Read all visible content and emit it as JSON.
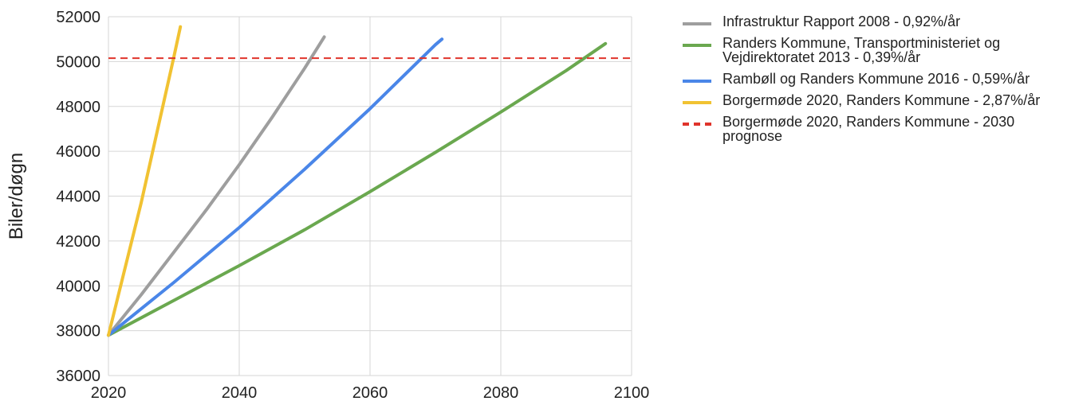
{
  "chart_data": {
    "type": "line",
    "title": "",
    "xlabel": "",
    "ylabel": "Biler/døgn",
    "xlim": [
      2020,
      2100
    ],
    "ylim": [
      36000,
      52000
    ],
    "x_ticks": [
      2020,
      2040,
      2060,
      2080,
      2100
    ],
    "y_ticks": [
      36000,
      38000,
      40000,
      42000,
      44000,
      46000,
      48000,
      50000,
      52000
    ],
    "grid": true,
    "legend_position": "right",
    "series": [
      {
        "name": "Infrastruktur Rapport 2008 - 0,92%/år",
        "color": "#9e9e9e",
        "style": "solid",
        "x": [
          2020,
          2025,
          2030,
          2035,
          2040,
          2045,
          2050,
          2053
        ],
        "y": [
          37800,
          39600,
          41500,
          43400,
          45400,
          47500,
          49700,
          51100
        ]
      },
      {
        "name": "Randers Kommune, Transportministeriet og Vejdirektoratet 2013 - 0,39%/år",
        "color": "#6aa84f",
        "style": "solid",
        "x": [
          2020,
          2030,
          2040,
          2050,
          2060,
          2070,
          2080,
          2090,
          2096
        ],
        "y": [
          37800,
          39350,
          40900,
          42500,
          44200,
          45950,
          47750,
          49600,
          50800
        ]
      },
      {
        "name": "Rambøll og Randers Kommune 2016 - 0,59%/år",
        "color": "#4a86e8",
        "style": "solid",
        "x": [
          2020,
          2030,
          2040,
          2050,
          2060,
          2070,
          2071
        ],
        "y": [
          37800,
          40150,
          42600,
          45200,
          47900,
          50750,
          51000
        ]
      },
      {
        "name": "Borgermøde 2020, Randers Kommune - 2,87%/år",
        "color": "#f1c232",
        "style": "solid",
        "x": [
          2020,
          2025,
          2030,
          2031
        ],
        "y": [
          37800,
          43700,
          50200,
          51550
        ]
      },
      {
        "name": "Borgermøde 2020, Randers Kommune - 2030 prognose",
        "color": "#e0342b",
        "style": "dashed",
        "x": [
          2020,
          2100
        ],
        "y": [
          50150,
          50150
        ]
      }
    ]
  }
}
